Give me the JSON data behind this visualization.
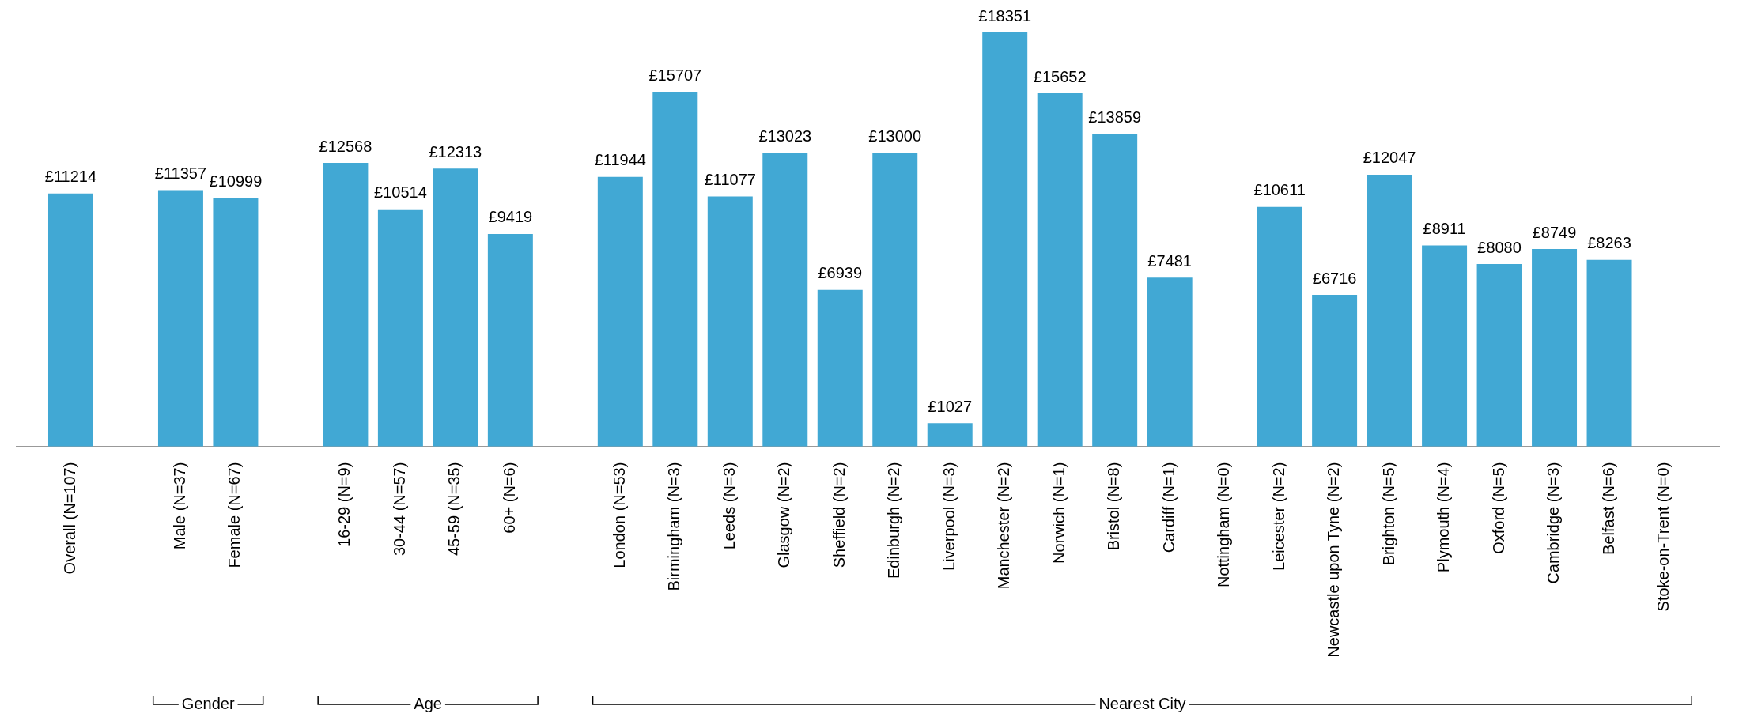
{
  "chart_data": {
    "type": "bar",
    "categories": [
      null,
      "Overall (N=107)",
      null,
      "Male (N=37)",
      "Female (N=67)",
      null,
      "16-29 (N=9)",
      "30-44 (N=57)",
      "45-59 (N=35)",
      "60+ (N=6)",
      null,
      "London (N=53)",
      "Birmingham (N=3)",
      "Leeds (N=3)",
      "Glasgow (N=2)",
      "Sheffield (N=2)",
      "Edinburgh (N=2)",
      "Liverpool (N=3)",
      "Manchester (N=2)",
      "Norwich (N=1)",
      "Bristol (N=8)",
      "Cardiff (N=1)",
      "Nottingham (N=0)",
      "Leicester (N=2)",
      "Newcastle upon Tyne (N=2)",
      "Brighton (N=5)",
      "Plymouth (N=4)",
      "Oxford (N=5)",
      "Cambridge (N=3)",
      "Belfast (N=6)",
      "Stoke-on-Trent (N=0)",
      null
    ],
    "values": [
      null,
      11214,
      null,
      11357,
      10999,
      null,
      12568,
      10514,
      12313,
      9419,
      null,
      11944,
      15707,
      11077,
      13023,
      6939,
      13000,
      1027,
      18351,
      15652,
      13859,
      7481,
      null,
      10611,
      6716,
      12047,
      8911,
      8080,
      8749,
      8263,
      null,
      null
    ],
    "value_labels": [
      null,
      "£11214",
      null,
      "£11357",
      "£10999",
      null,
      "£12568",
      "£10514",
      "£12313",
      "£9419",
      null,
      "£11944",
      "£15707",
      "£11077",
      "£13023",
      "£6939",
      "£13000",
      "£1027",
      "£18351",
      "£15652",
      "£13859",
      "£7481",
      null,
      "£10611",
      "£6716",
      "£12047",
      "£8911",
      "£8080",
      "£8749",
      "£8263",
      null,
      null
    ],
    "color": "#41a8d4",
    "annotations": [
      "Gender",
      "Age",
      "Nearest City"
    ],
    "grid": false,
    "legend": false
  }
}
